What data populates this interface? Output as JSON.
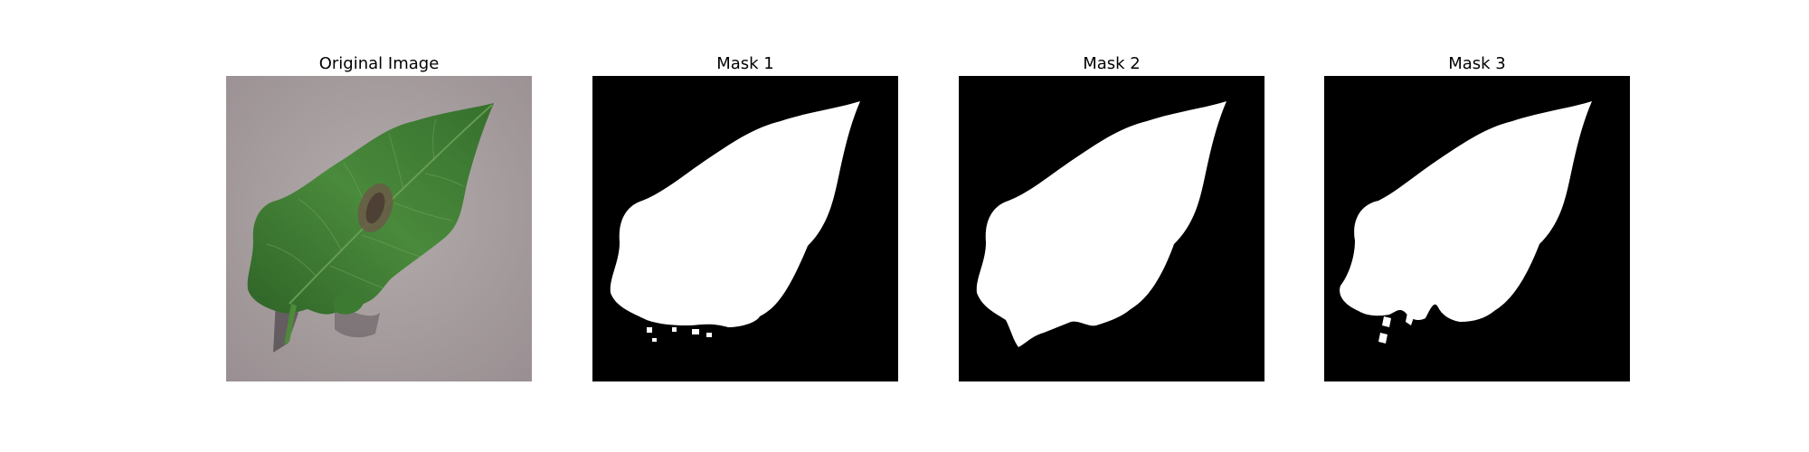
{
  "panels": [
    {
      "title": "Original Image"
    },
    {
      "title": "Mask 1"
    },
    {
      "title": "Mask 2"
    },
    {
      "title": "Mask 3"
    }
  ],
  "colors": {
    "background": "#ffffff",
    "surface": "#a79f9f",
    "leaf": "#3f7a33",
    "leaf_dark": "#2c5b26",
    "mask_background": "#000000",
    "mask_foreground": "#ffffff"
  }
}
